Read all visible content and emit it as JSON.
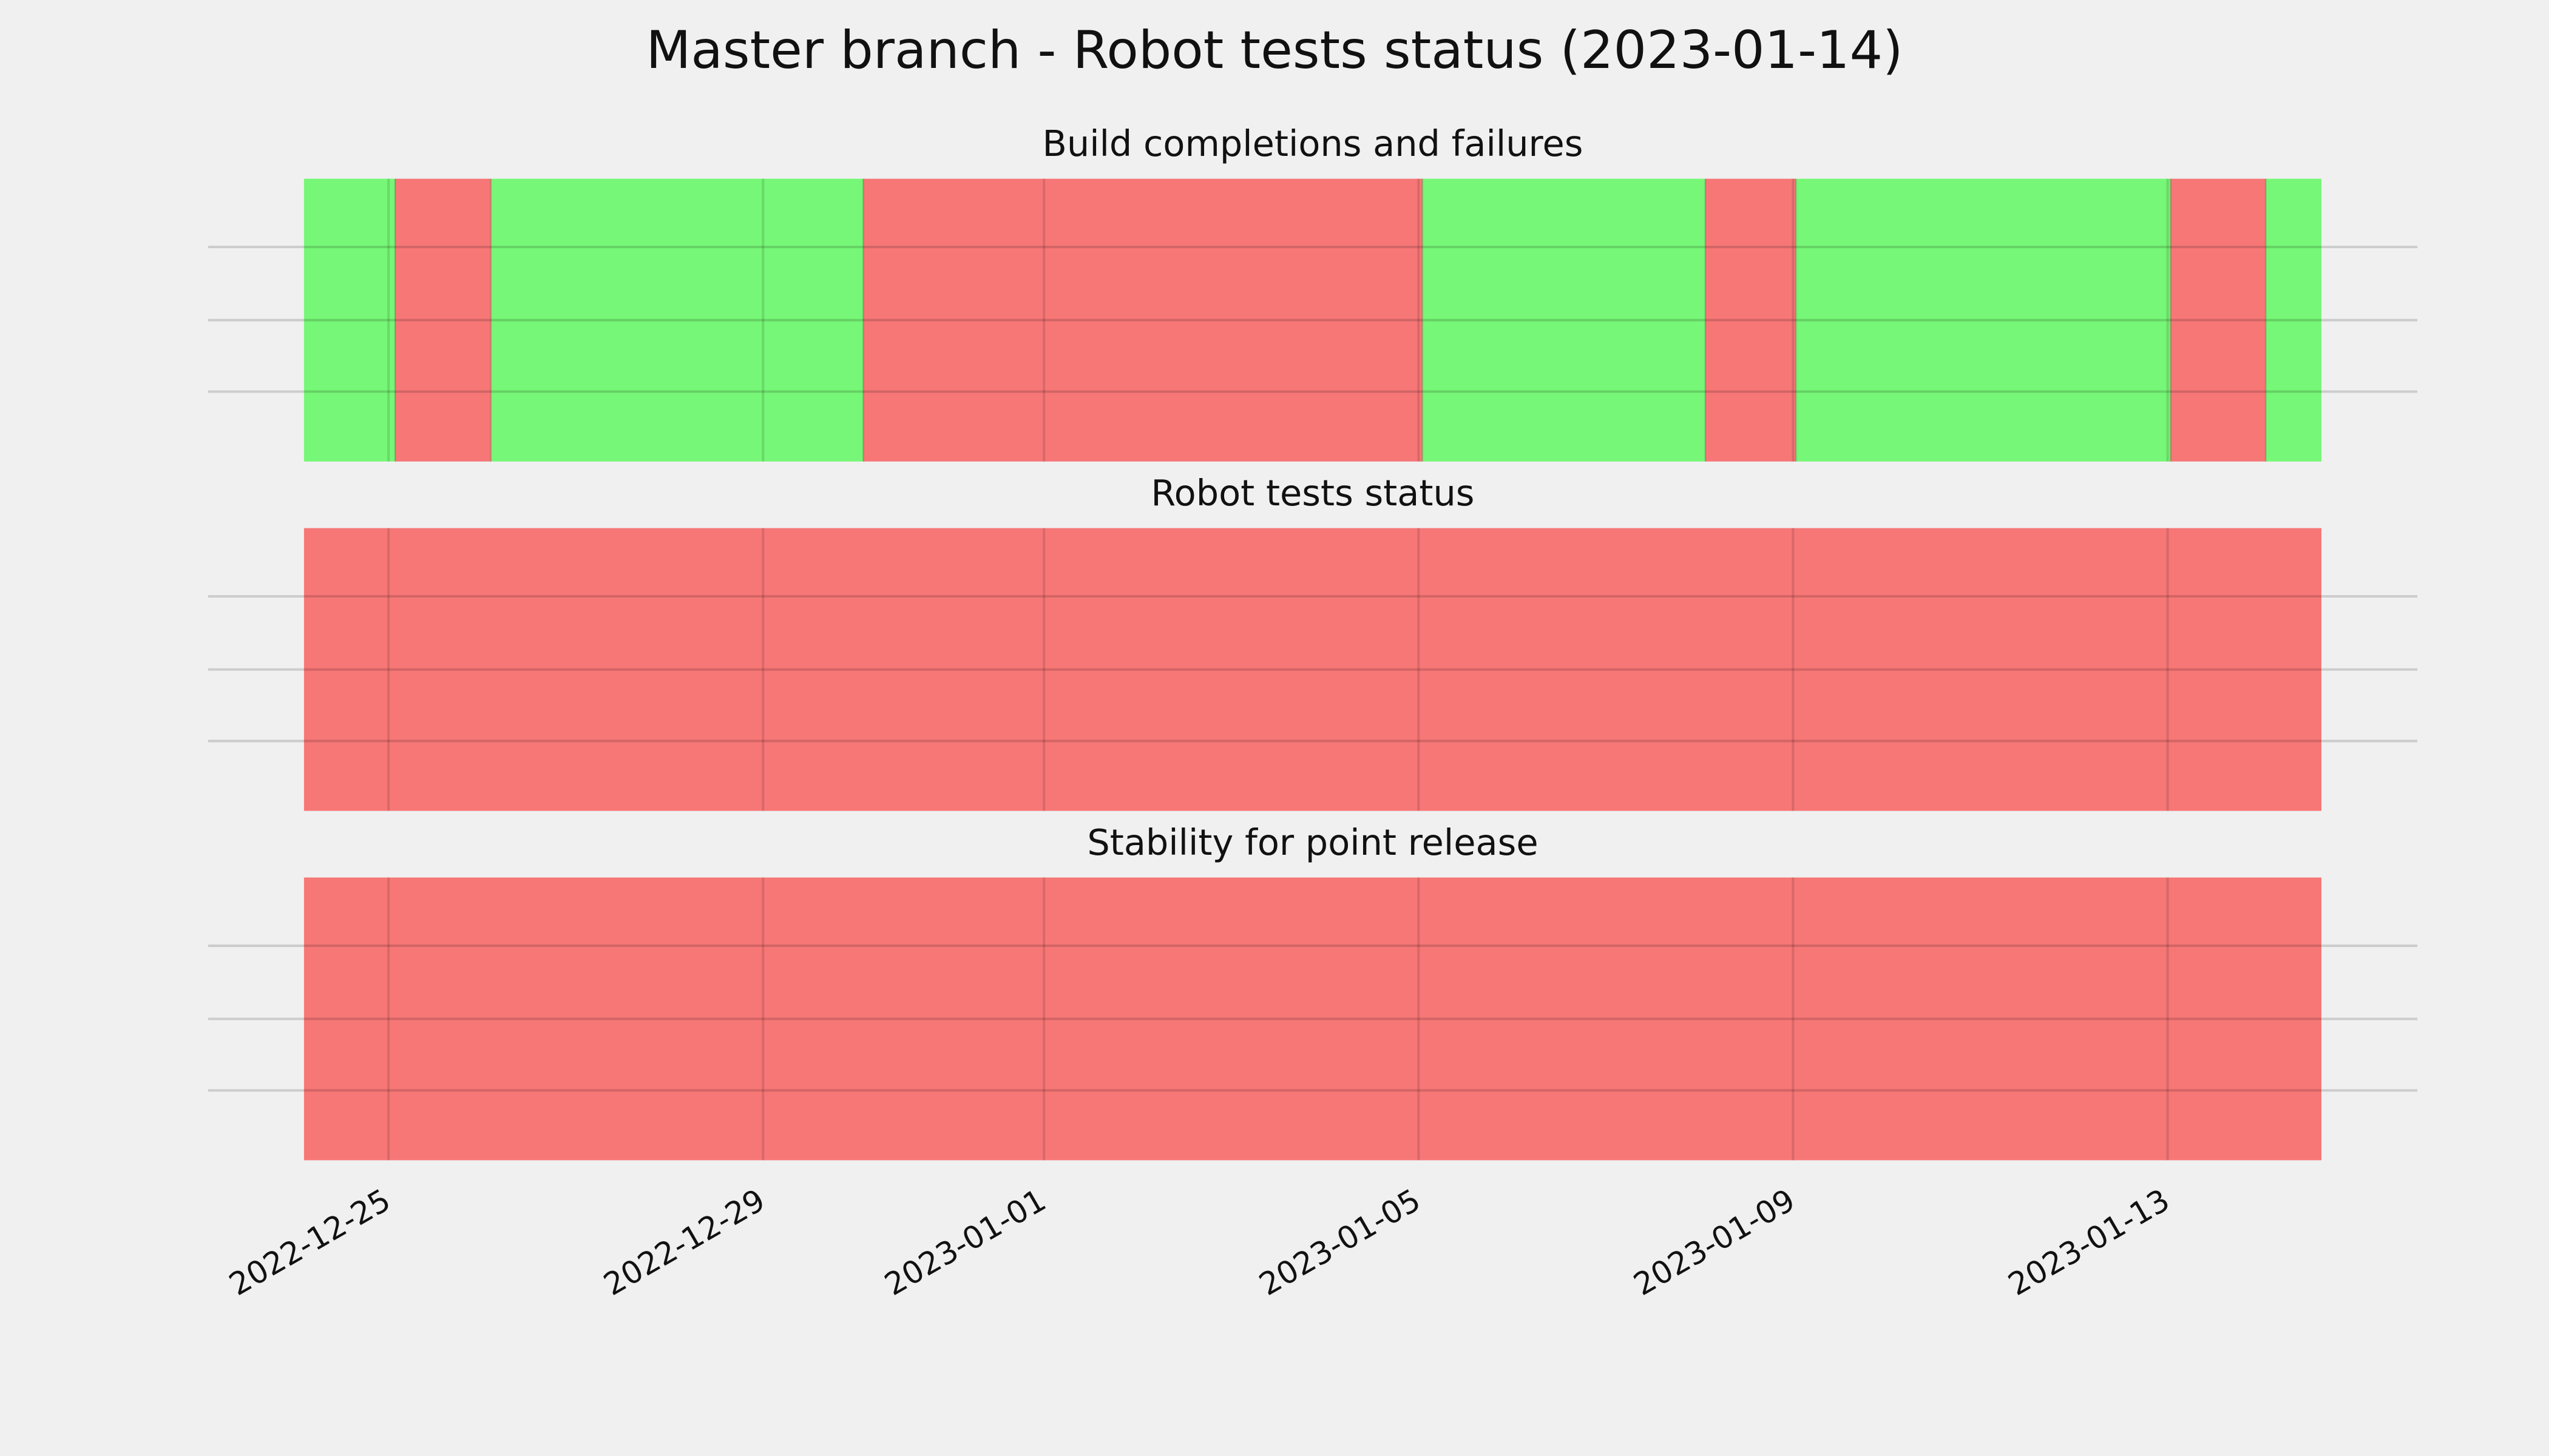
{
  "title": "Master branch - Robot tests status (2023-01-14)",
  "chart_data": [
    {
      "type": "timeline",
      "title": "Build completions and failures",
      "x": [
        "2022-12-24T02:20",
        "2022-12-25T01:40",
        "2022-12-26T02:15",
        "2022-12-30T01:40",
        "2023-01-05T01:00",
        "2023-01-08T01:30",
        "2023-01-09T00:45",
        "2023-01-13T00:45",
        "2023-01-14T01:10",
        "2023-01-14T15:25"
      ],
      "colors": [
        "#77f777",
        "#f77777",
        "#77f777",
        "#f77777",
        "#77f777",
        "#f77777",
        "#77f777",
        "#f77777",
        "#77f777"
      ],
      "xlim": [
        "2022-12-24T02:20",
        "2023-01-14T15:25"
      ],
      "xticks": [
        "2022-12-25",
        "2022-12-29",
        "2023-01-01",
        "2023-01-05",
        "2023-01-09",
        "2023-01-13"
      ],
      "grid": true
    },
    {
      "type": "timeline",
      "title": "Robot tests status",
      "x": [
        "2022-12-24T02:20",
        "2023-01-14T15:25"
      ],
      "colors": [
        "#f77777"
      ],
      "xlim": [
        "2022-12-24T02:20",
        "2023-01-14T15:25"
      ],
      "xticks": [
        "2022-12-25",
        "2022-12-29",
        "2023-01-01",
        "2023-01-05",
        "2023-01-09",
        "2023-01-13"
      ],
      "grid": true
    },
    {
      "type": "timeline",
      "title": "Stability for point release",
      "x": [
        "2022-12-24T02:20",
        "2023-01-14T15:25"
      ],
      "colors": [
        "#f77777"
      ],
      "xlim": [
        "2022-12-24T02:20",
        "2023-01-14T15:25"
      ],
      "xticks": [
        "2022-12-25",
        "2022-12-29",
        "2023-01-01",
        "2023-01-05",
        "2023-01-09",
        "2023-01-13"
      ],
      "grid": true
    }
  ]
}
